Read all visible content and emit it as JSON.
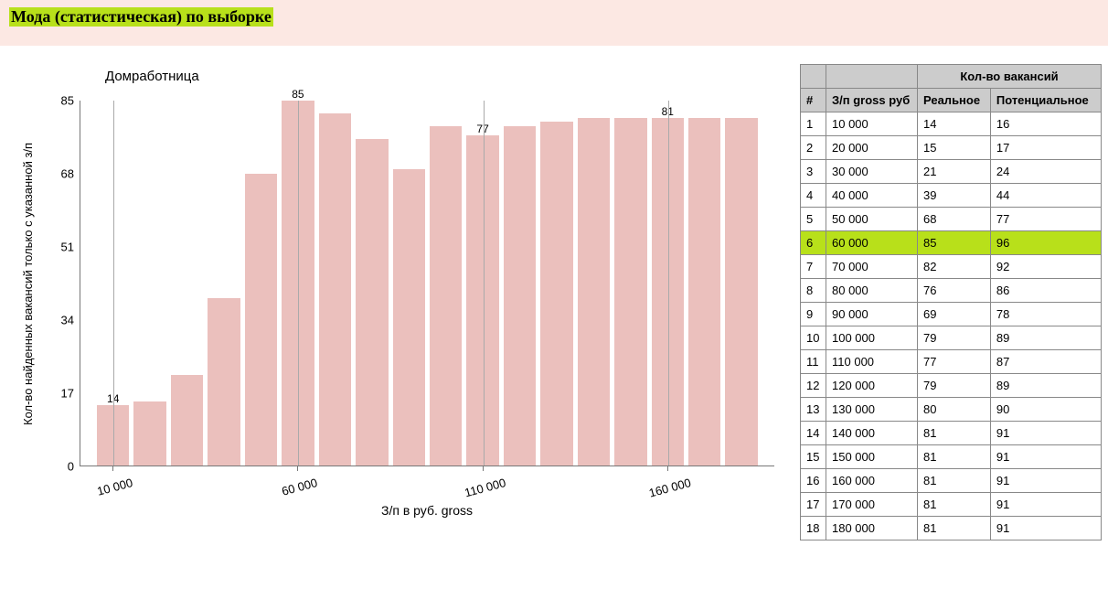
{
  "header": {
    "title": "Мода (статистическая) по выборке"
  },
  "chart": {
    "type": "bar",
    "title": "Домработница",
    "ylabel": "Кол-во найденных вакансий\nтолько с указанной з/п",
    "xlabel": "З/п в руб. gross",
    "bar_color": "#ebc0bd",
    "plot_border_color": "#777777",
    "vline_color": "#aaaaaa",
    "y": {
      "min": 0,
      "max": 85,
      "ticks": [
        0,
        17,
        34,
        51,
        68,
        85
      ]
    },
    "x_ticks": [
      {
        "label": "10 000",
        "at_index": 0
      },
      {
        "label": "60 000",
        "at_index": 5
      },
      {
        "label": "110 000",
        "at_index": 10
      },
      {
        "label": "160 000",
        "at_index": 15
      }
    ],
    "bars": [
      {
        "v": 14,
        "label": "14"
      },
      {
        "v": 15
      },
      {
        "v": 21
      },
      {
        "v": 39
      },
      {
        "v": 68
      },
      {
        "v": 85,
        "label": "85"
      },
      {
        "v": 82
      },
      {
        "v": 76
      },
      {
        "v": 69
      },
      {
        "v": 79
      },
      {
        "v": 77,
        "label": "77"
      },
      {
        "v": 79
      },
      {
        "v": 80
      },
      {
        "v": 81
      },
      {
        "v": 81
      },
      {
        "v": 81,
        "label": "81"
      },
      {
        "v": 81
      },
      {
        "v": 81
      }
    ]
  },
  "table": {
    "group_header": "Кол-во вакансий",
    "columns": {
      "idx": "#",
      "salary": "З/п gross руб",
      "real": "Реальное",
      "potential": "Потенциальное"
    },
    "highlight_row_index": 5,
    "highlight_color": "#b8e01a",
    "header_bg": "#cccccc",
    "rows": [
      {
        "idx": 1,
        "salary": "10 000",
        "real": 14,
        "potential": 16
      },
      {
        "idx": 2,
        "salary": "20 000",
        "real": 15,
        "potential": 17
      },
      {
        "idx": 3,
        "salary": "30 000",
        "real": 21,
        "potential": 24
      },
      {
        "idx": 4,
        "salary": "40 000",
        "real": 39,
        "potential": 44
      },
      {
        "idx": 5,
        "salary": "50 000",
        "real": 68,
        "potential": 77
      },
      {
        "idx": 6,
        "salary": "60 000",
        "real": 85,
        "potential": 96
      },
      {
        "idx": 7,
        "salary": "70 000",
        "real": 82,
        "potential": 92
      },
      {
        "idx": 8,
        "salary": "80 000",
        "real": 76,
        "potential": 86
      },
      {
        "idx": 9,
        "salary": "90 000",
        "real": 69,
        "potential": 78
      },
      {
        "idx": 10,
        "salary": "100 000",
        "real": 79,
        "potential": 89
      },
      {
        "idx": 11,
        "salary": "110 000",
        "real": 77,
        "potential": 87
      },
      {
        "idx": 12,
        "salary": "120 000",
        "real": 79,
        "potential": 89
      },
      {
        "idx": 13,
        "salary": "130 000",
        "real": 80,
        "potential": 90
      },
      {
        "idx": 14,
        "salary": "140 000",
        "real": 81,
        "potential": 91
      },
      {
        "idx": 15,
        "salary": "150 000",
        "real": 81,
        "potential": 91
      },
      {
        "idx": 16,
        "salary": "160 000",
        "real": 81,
        "potential": 91
      },
      {
        "idx": 17,
        "salary": "170 000",
        "real": 81,
        "potential": 91
      },
      {
        "idx": 18,
        "salary": "180 000",
        "real": 81,
        "potential": 91
      }
    ]
  }
}
